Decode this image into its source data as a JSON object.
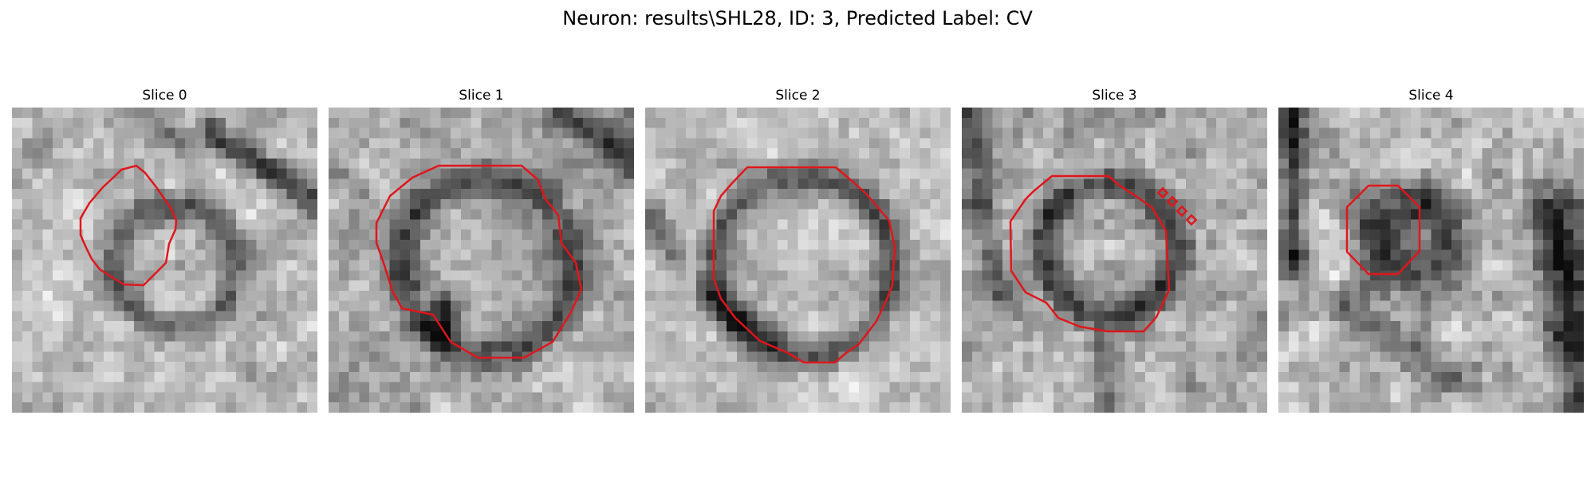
{
  "figure": {
    "title": "Neuron: results\\SHL28, ID: 3, Predicted Label: CV"
  },
  "panels": [
    {
      "title": "Slice 0"
    },
    {
      "title": "Slice 1"
    },
    {
      "title": "Slice 2"
    },
    {
      "title": "Slice 3"
    },
    {
      "title": "Slice 4"
    }
  ],
  "colors": {
    "contour": "#e0161b",
    "background": "#ffffff"
  }
}
